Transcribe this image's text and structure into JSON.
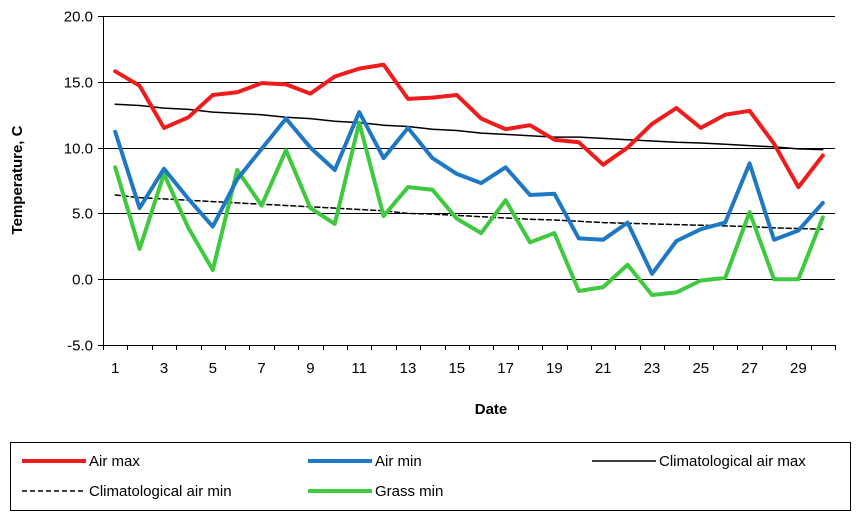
{
  "chart_data": {
    "type": "line",
    "title": "",
    "xlabel": "Date",
    "ylabel": "Temperature, C",
    "x": [
      1,
      2,
      3,
      4,
      5,
      6,
      7,
      8,
      9,
      10,
      11,
      12,
      13,
      14,
      15,
      16,
      17,
      18,
      19,
      20,
      21,
      22,
      23,
      24,
      25,
      26,
      27,
      28,
      29,
      30
    ],
    "x_tick_labels": [
      "1",
      "3",
      "5",
      "7",
      "9",
      "11",
      "13",
      "15",
      "17",
      "19",
      "21",
      "23",
      "25",
      "27",
      "29"
    ],
    "y_tick_labels": [
      "-5.0",
      "0.0",
      "5.0",
      "10.0",
      "15.0",
      "20.0"
    ],
    "ylim": [
      -5,
      20
    ],
    "xlim": [
      0.5,
      30.5
    ],
    "grid": "horizontal",
    "legend_position": "bottom",
    "series": [
      {
        "name": "Air max",
        "color": "#ee1c1c",
        "style": "thick",
        "values": [
          15.8,
          14.7,
          11.5,
          12.3,
          14.0,
          14.2,
          14.9,
          14.8,
          14.1,
          15.4,
          16.0,
          16.3,
          13.7,
          13.8,
          14.0,
          12.2,
          11.4,
          11.7,
          10.6,
          10.4,
          8.7,
          10.0,
          11.8,
          13.0,
          11.5,
          12.5,
          12.8,
          10.3,
          7.0,
          9.4
        ]
      },
      {
        "name": "Air min",
        "color": "#1f78c4",
        "style": "thick",
        "values": [
          11.2,
          5.4,
          8.4,
          6.1,
          4.0,
          7.6,
          9.9,
          12.2,
          10.0,
          8.3,
          12.7,
          9.2,
          11.5,
          9.2,
          8.0,
          7.3,
          8.5,
          6.4,
          6.5,
          3.1,
          3.0,
          4.3,
          0.4,
          2.9,
          3.8,
          4.3,
          8.8,
          3.0,
          3.7,
          5.8
        ]
      },
      {
        "name": "Climatological air max",
        "color": "#000000",
        "style": "thin",
        "values": [
          13.3,
          13.2,
          13.0,
          12.9,
          12.7,
          12.6,
          12.5,
          12.3,
          12.2,
          12.0,
          11.9,
          11.7,
          11.6,
          11.4,
          11.3,
          11.1,
          11.0,
          10.9,
          10.8,
          10.8,
          10.7,
          10.6,
          10.5,
          10.4,
          10.35,
          10.25,
          10.15,
          10.05,
          9.9,
          9.85
        ]
      },
      {
        "name": "Climatological air min",
        "color": "#000000",
        "style": "dashed",
        "values": [
          6.4,
          6.2,
          6.1,
          6.0,
          5.9,
          5.8,
          5.7,
          5.6,
          5.5,
          5.4,
          5.3,
          5.2,
          5.0,
          4.95,
          4.85,
          4.75,
          4.65,
          4.55,
          4.5,
          4.4,
          4.3,
          4.25,
          4.2,
          4.15,
          4.1,
          4.05,
          4.0,
          3.9,
          3.85,
          3.8
        ]
      },
      {
        "name": "Grass min",
        "color": "#3ec93e",
        "style": "thick",
        "values": [
          8.5,
          2.3,
          8.0,
          3.9,
          0.7,
          8.3,
          5.6,
          9.8,
          5.4,
          4.2,
          11.9,
          4.8,
          7.0,
          6.8,
          4.6,
          3.5,
          6.0,
          2.8,
          3.5,
          -0.9,
          -0.6,
          1.1,
          -1.2,
          -1.0,
          -0.1,
          0.1,
          5.1,
          0.0,
          0.0,
          4.7
        ]
      }
    ]
  }
}
